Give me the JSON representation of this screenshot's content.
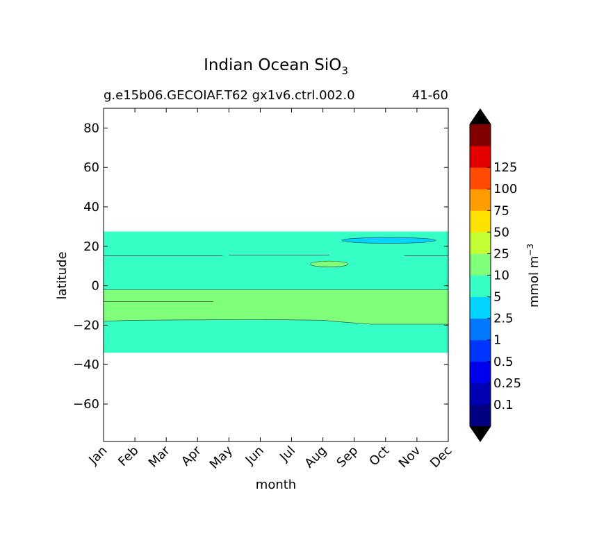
{
  "chart_data": {
    "type": "contour",
    "title": "Indian Ocean SiO",
    "title_subscript": "3",
    "subtitle_left": "g.e15b06.GECOIAF.T62 gx1v6.ctrl.002.0",
    "subtitle_right": "41-60",
    "xlabel": "month",
    "ylabel": "latitude",
    "x_categories": [
      "Jan",
      "Feb",
      "Mar",
      "Apr",
      "May",
      "Jun",
      "Jul",
      "Aug",
      "Sep",
      "Oct",
      "Nov",
      "Dec"
    ],
    "xlim": [
      1,
      12
    ],
    "ylim": [
      -79,
      90
    ],
    "y_ticks": [
      80,
      60,
      40,
      20,
      0,
      -20,
      -40,
      -60
    ],
    "y_tick_labels": [
      "80",
      "60",
      "40",
      "20",
      "0",
      "−20",
      "−40",
      "−60"
    ],
    "colorbar": {
      "label": "mmol m",
      "label_superscript": "−3",
      "levels": [
        0.1,
        0.25,
        0.5,
        1,
        2.5,
        5,
        10,
        25,
        50,
        75,
        100,
        125
      ],
      "level_labels": [
        "0.1",
        "0.25",
        "0.5",
        "1",
        "2.5",
        "5",
        "10",
        "25",
        "50",
        "75",
        "100",
        "125"
      ],
      "colors": [
        "#000080",
        "#0000b2",
        "#0000ec",
        "#0034ff",
        "#0078ff",
        "#00d4ff",
        "#35ffc4",
        "#7fff7a",
        "#c4ff35",
        "#ffe200",
        "#ff9d00",
        "#ff4a00",
        "#e40000",
        "#800000"
      ],
      "under_color": "#000000",
      "over_color": "#000000"
    },
    "regions": [
      {
        "desc": "ocean band",
        "value_range": "2.5-5",
        "color": "#35ffc4",
        "x_range": [
          1,
          12
        ],
        "lat_range": [
          -34,
          27.5
        ]
      },
      {
        "desc": "southern band",
        "value_range": "5-10",
        "color": "#7fff7a",
        "x": [
          1,
          2,
          4,
          6,
          7,
          8,
          8.3,
          9.5,
          11,
          12
        ],
        "lat_top": [
          -2,
          -2,
          -2,
          -2,
          -2,
          -2,
          -2,
          -2,
          -2,
          -2
        ],
        "lat_bottom": [
          -18,
          -17.5,
          -17.3,
          -17.2,
          -17.3,
          -17.5,
          -18,
          -19.5,
          -19.5,
          -19.5
        ]
      },
      {
        "desc": "northern patch",
        "value_range": "5-10",
        "color": "#7fff7a",
        "x_range": [
          7.6,
          8.8
        ],
        "lat_range": [
          9.5,
          12.5
        ]
      },
      {
        "desc": "northern patch",
        "value_range": "1-2.5",
        "color": "#00d4ff",
        "x_range": [
          8.6,
          11.6
        ],
        "lat_range": [
          21.5,
          24.5
        ]
      }
    ]
  }
}
